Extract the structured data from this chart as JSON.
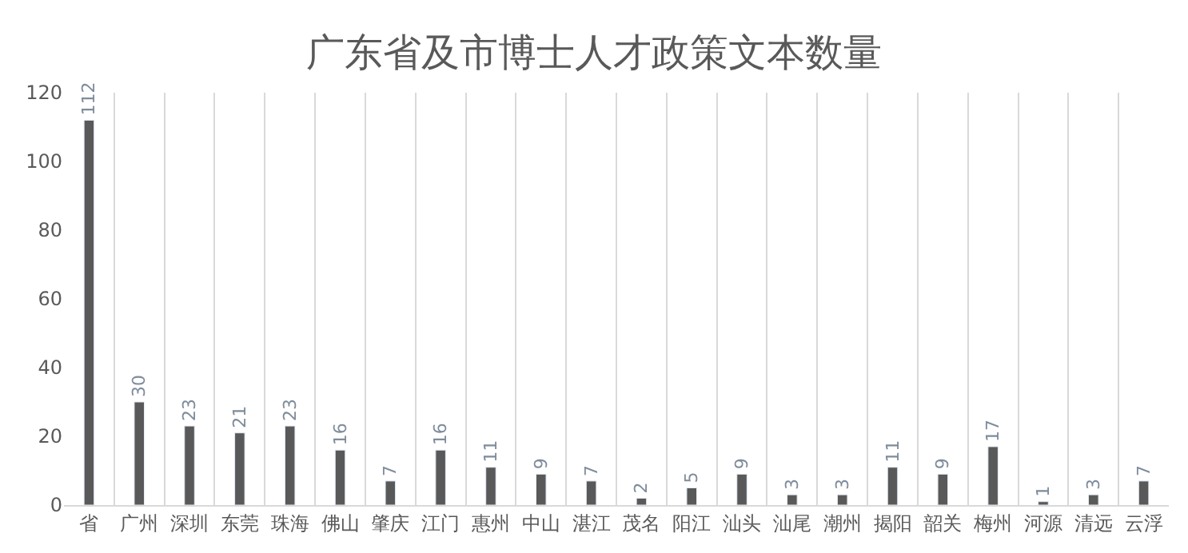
{
  "chart_data": {
    "type": "bar",
    "title": "广东省及市博士人才政策文本数量",
    "categories": [
      "省",
      "广州",
      "深圳",
      "东莞",
      "珠海",
      "佛山",
      "肇庆",
      "江门",
      "惠州",
      "中山",
      "湛江",
      "茂名",
      "阳江",
      "汕头",
      "汕尾",
      "潮州",
      "揭阳",
      "韶关",
      "梅州",
      "河源",
      "清远",
      "云浮"
    ],
    "values": [
      112,
      30,
      23,
      21,
      23,
      16,
      7,
      16,
      11,
      9,
      7,
      2,
      5,
      9,
      3,
      3,
      11,
      9,
      17,
      1,
      3,
      7
    ],
    "color": "#595959",
    "ylim": [
      0,
      120
    ],
    "yticks": [
      0,
      20,
      40,
      60,
      80,
      100,
      120
    ],
    "grid": "x",
    "data_labels": true
  }
}
